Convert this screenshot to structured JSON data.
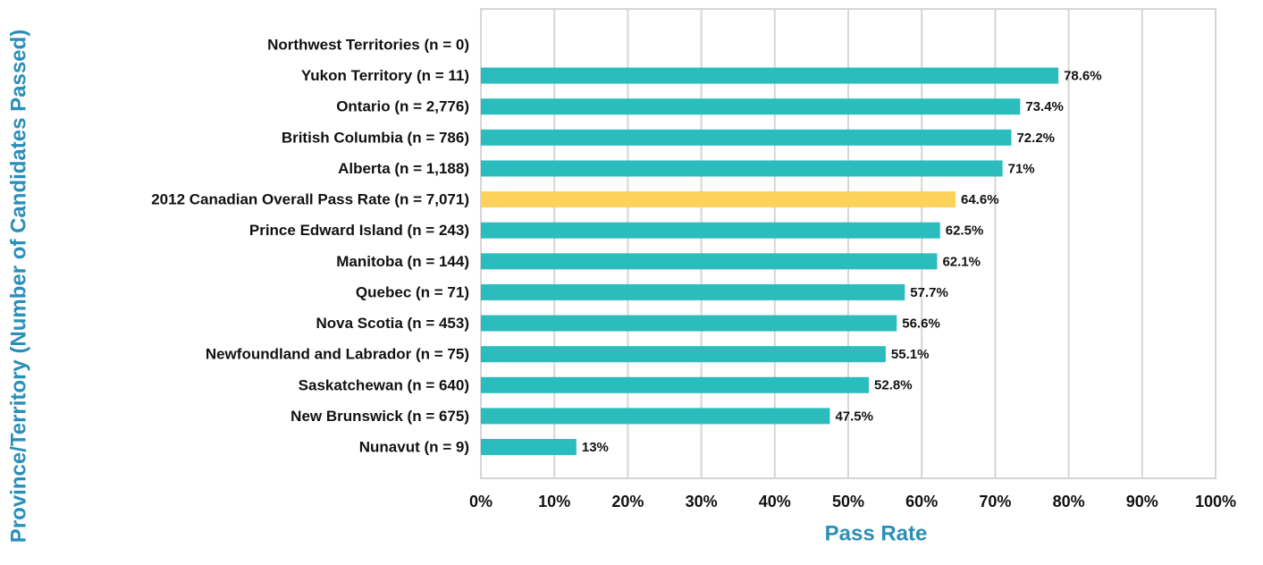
{
  "chart_data": {
    "type": "hbar",
    "xlabel": "Pass Rate",
    "ylabel": "Province/Territory (Number of Candidates Passed)",
    "categories": [
      "Northwest Territories (n = 0)",
      "Yukon Territory (n = 11)",
      "Ontario (n = 2,776)",
      "British Columbia (n = 786)",
      "Alberta (n = 1,188)",
      "2012 Canadian Overall Pass Rate (n = 7,071)",
      "Prince Edward Island (n = 243)",
      "Manitoba (n = 144)",
      "Quebec (n = 71)",
      "Nova Scotia (n = 453)",
      "Newfoundland and Labrador (n = 75)",
      "Saskatchewan (n = 640)",
      "New Brunswick (n = 675)",
      "Nunavut (n = 9)"
    ],
    "values": [
      null,
      78.6,
      73.4,
      72.2,
      71,
      64.6,
      62.5,
      62.1,
      57.7,
      56.6,
      55.1,
      52.8,
      47.5,
      13
    ],
    "value_labels": [
      null,
      "78.6%",
      "73.4%",
      "72.2%",
      "71%",
      "64.6%",
      "62.5%",
      "62.1%",
      "57.7%",
      "56.6%",
      "55.1%",
      "52.8%",
      "47.5%",
      "13%"
    ],
    "colors": [
      "#2bbdbd",
      "#2bbdbd",
      "#2bbdbd",
      "#2bbdbd",
      "#2bbdbd",
      "#fcd25a",
      "#2bbdbd",
      "#2bbdbd",
      "#2bbdbd",
      "#2bbdbd",
      "#2bbdbd",
      "#2bbdbd",
      "#2bbdbd",
      "#2bbdbd"
    ],
    "xlim": [
      0,
      100
    ],
    "xticks": [
      {
        "value": 0,
        "label": "0%"
      },
      {
        "value": 10,
        "label": "10%"
      },
      {
        "value": 20,
        "label": "20%"
      },
      {
        "value": 30,
        "label": "30%"
      },
      {
        "value": 40,
        "label": "40%"
      },
      {
        "value": 50,
        "label": "50%"
      },
      {
        "value": 60,
        "label": "60%"
      },
      {
        "value": 70,
        "label": "70%"
      },
      {
        "value": 80,
        "label": "80%"
      },
      {
        "value": 90,
        "label": "90%"
      },
      {
        "value": 100,
        "label": "100%"
      }
    ],
    "grid": true
  }
}
